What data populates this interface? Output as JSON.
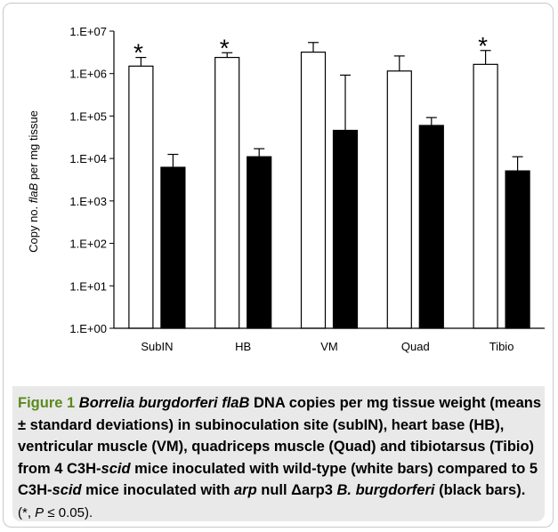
{
  "chart_data": {
    "type": "bar",
    "y_scale": "log",
    "ylabel_parts": [
      "Copy no. ",
      "flaB",
      " per mg tissue"
    ],
    "ylim": [
      1,
      10000000
    ],
    "y_ticks": [
      "1.E+00",
      "1.E+01",
      "1.E+02",
      "1.E+03",
      "1.E+04",
      "1.E+05",
      "1.E+06",
      "1.E+07"
    ],
    "categories": [
      "SubIN",
      "HB",
      "VM",
      "Quad",
      "Tibio"
    ],
    "series": [
      {
        "color": "#ffffff",
        "values": [
          1500000,
          2400000,
          3200000,
          1150000,
          1650000
        ],
        "error_upper": [
          2400000,
          3100000,
          5400000,
          2600000,
          3500000
        ]
      },
      {
        "color": "#000000",
        "values": [
          6200,
          11000,
          46000,
          60000,
          5100
        ],
        "error_upper": [
          12500,
          17000,
          920000,
          92000,
          11000
        ]
      }
    ],
    "significance_marker": "*",
    "significant_categories": [
      "SubIN",
      "HB",
      "Tibio"
    ]
  },
  "caption": {
    "label": "Figure 1",
    "taxon": "Borrelia burgdorferi flaB",
    "part1": " DNA copies per mg tissue weight (means ± standard deviations) in subinoculation site (subIN), heart base (HB), ventricular muscle (VM), quadriceps muscle (Quad) and tibiotarsus (Tibio) from 4 C3H-",
    "scid1": "scid",
    "part2": " mice inoculated with wild-type (white bars) compared to 5 C3H-",
    "scid2": "scid",
    "part3": " mice inoculated with ",
    "arp": "arp",
    "part4": " null Δarp3 ",
    "bb": "B. burgdorferi",
    "part5": " (black bars).",
    "note_open": "(*, ",
    "note_p": "P",
    "note_close": " ≤ 0.05)."
  }
}
